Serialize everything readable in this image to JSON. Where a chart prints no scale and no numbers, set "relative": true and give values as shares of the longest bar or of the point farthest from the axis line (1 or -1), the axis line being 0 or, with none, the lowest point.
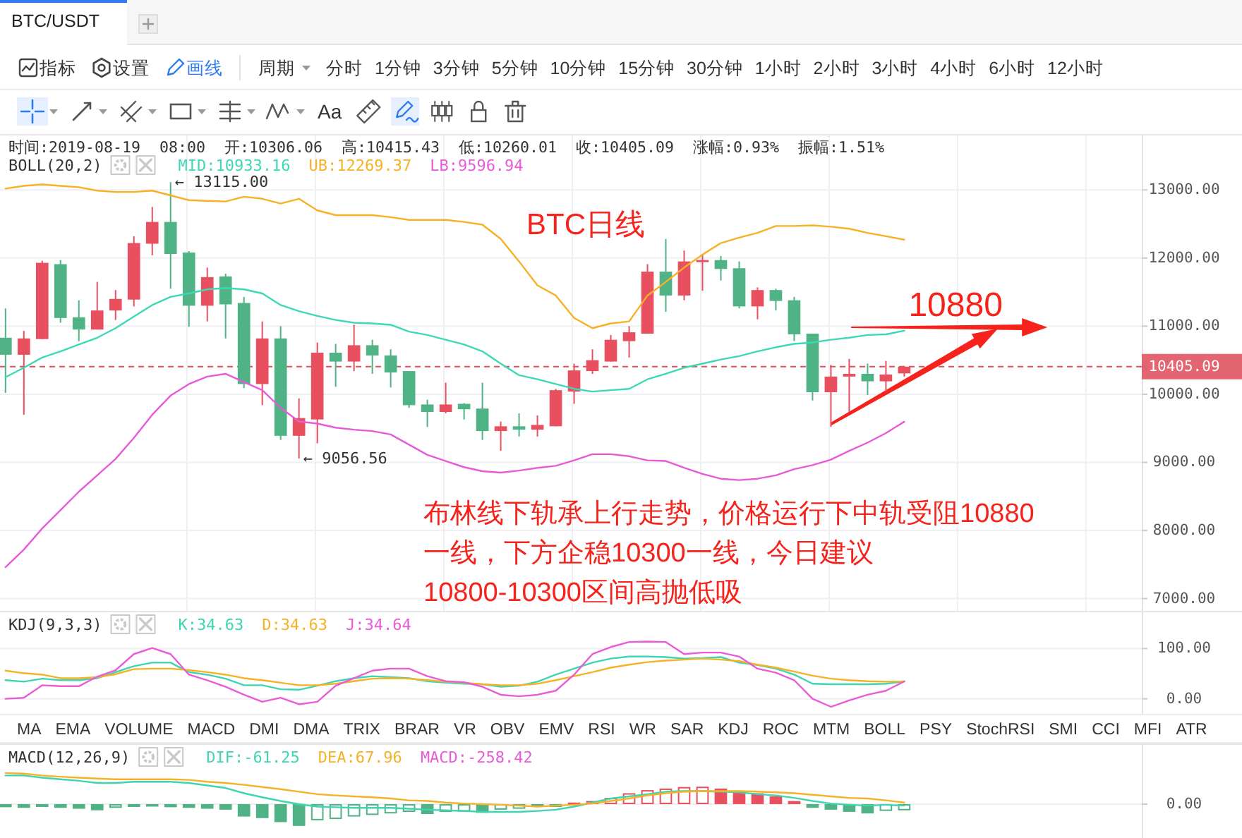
{
  "chart_data": [
    {
      "type": "other",
      "title": "BTC/USDT",
      "annotations": [
        "指标",
        "设置",
        "画线",
        "周期",
        "分时 1分钟 3分钟 5分钟 10分钟 15分钟 30分钟 1小时 2小时 3小时 4小时 6小时 12小时"
      ]
    },
    {
      "type": "other",
      "annotations": [
        "Aa"
      ]
    },
    {
      "type": "candlestick",
      "subtitle": "时间:2019-08-19 08:00 开:10306.06 高:10415.43 低:10260.01 收:10405.09 涨幅:0.93% 振幅:1.51%",
      "legend_title": "BOLL(20,2)",
      "legend": "top left",
      "grid": true,
      "categories": [
        null,
        null,
        null,
        null,
        null,
        null,
        null,
        null,
        null,
        null,
        null,
        null,
        null,
        null,
        null,
        null,
        null,
        null,
        null,
        null,
        null,
        null,
        null,
        null,
        null,
        null,
        null,
        null,
        null,
        null,
        null,
        null,
        null,
        null,
        null,
        null,
        null,
        null,
        null,
        null,
        null,
        null,
        null,
        null,
        null,
        null,
        null,
        null,
        null,
        null
      ],
      "ohlc": [
        [
          10830,
          11260,
          10020,
          10580
        ],
        [
          10580,
          10930,
          9700,
          10820
        ],
        [
          10810,
          11960,
          10810,
          11930
        ],
        [
          11910,
          11970,
          11050,
          11120
        ],
        [
          11130,
          11380,
          10780,
          10950
        ],
        [
          10950,
          11650,
          10950,
          11230
        ],
        [
          11230,
          11530,
          11090,
          11400
        ],
        [
          11390,
          12320,
          11290,
          12220
        ],
        [
          12210,
          12750,
          12040,
          12530
        ],
        [
          12530,
          13115,
          11550,
          12060
        ],
        [
          12080,
          12100,
          10990,
          11300
        ],
        [
          11300,
          11860,
          11070,
          11720
        ],
        [
          11730,
          11770,
          10820,
          11320
        ],
        [
          11340,
          11430,
          10090,
          10150
        ],
        [
          10150,
          11070,
          9840,
          10820
        ],
        [
          10820,
          11000,
          9330,
          9390
        ],
        [
          9390,
          9940,
          9056.56,
          9650
        ],
        [
          9630,
          10760,
          9280,
          10610
        ],
        [
          10610,
          10740,
          10110,
          10480
        ],
        [
          10480,
          11020,
          10340,
          10720
        ],
        [
          10720,
          10800,
          10300,
          10570
        ],
        [
          10570,
          10660,
          10100,
          10320
        ],
        [
          10340,
          10340,
          9800,
          9840
        ],
        [
          9850,
          9920,
          9520,
          9740
        ],
        [
          9740,
          10170,
          9720,
          9850
        ],
        [
          9860,
          9870,
          9630,
          9780
        ],
        [
          9790,
          10170,
          9330,
          9460
        ],
        [
          9460,
          9600,
          9170,
          9530
        ],
        [
          9530,
          9720,
          9380,
          9480
        ],
        [
          9480,
          9690,
          9380,
          9550
        ],
        [
          9530,
          10080,
          9530,
          10060
        ],
        [
          10040,
          10450,
          9860,
          10350
        ],
        [
          10340,
          10660,
          10300,
          10500
        ],
        [
          10480,
          10870,
          10480,
          10800
        ],
        [
          10780,
          11000,
          10540,
          10910
        ],
        [
          10890,
          11910,
          10890,
          11800
        ],
        [
          11800,
          12280,
          11210,
          11450
        ],
        [
          11450,
          12110,
          11380,
          11950
        ],
        [
          11940,
          12060,
          11520,
          11970
        ],
        [
          11970,
          12030,
          11670,
          11840
        ],
        [
          11850,
          11950,
          11260,
          11290
        ],
        [
          11290,
          11570,
          11100,
          11530
        ],
        [
          11530,
          11550,
          11230,
          11370
        ],
        [
          11380,
          11430,
          10780,
          10880
        ],
        [
          10890,
          10890,
          9910,
          10030
        ],
        [
          10030,
          10430,
          9520,
          10260
        ],
        [
          10260,
          10520,
          9740,
          10300
        ],
        [
          10300,
          10450,
          9990,
          10190
        ],
        [
          10190,
          10490,
          10040,
          10290
        ],
        [
          10306.06,
          10415.43,
          10260.01,
          10405.09
        ]
      ],
      "colors": [
        "#4fb386",
        "#e9505f",
        "#e9505f",
        "#4fb386",
        "#4fb386",
        "#e9505f",
        "#e9505f",
        "#e9505f",
        "#e9505f",
        "#4fb386",
        "#4fb386",
        "#e9505f",
        "#4fb386",
        "#4fb386",
        "#e9505f",
        "#4fb386",
        "#e9505f",
        "#e9505f",
        "#4fb386",
        "#e9505f",
        "#4fb386",
        "#4fb386",
        "#4fb386",
        "#4fb386",
        "#e9505f",
        "#4fb386",
        "#4fb386",
        "#e9505f",
        "#4fb386",
        "#e9505f",
        "#e9505f",
        "#e9505f",
        "#e9505f",
        "#e9505f",
        "#e9505f",
        "#e9505f",
        "#4fb386",
        "#e9505f",
        "#e9505f",
        "#4fb386",
        "#4fb386",
        "#e9505f",
        "#4fb386",
        "#4fb386",
        "#4fb386",
        "#e9505f",
        "#e9505f",
        "#4fb386",
        "#e9505f",
        "#e9505f"
      ],
      "series": [
        {
          "name": "MID:10933.16",
          "type": "line",
          "color": "#3dd8b6",
          "values": [
            10250,
            10390,
            10540,
            10630,
            10730,
            10830,
            10970,
            11140,
            11310,
            11430,
            11480,
            11540,
            11560,
            11540,
            11480,
            11310,
            11220,
            11150,
            11090,
            11050,
            11040,
            11020,
            10920,
            10870,
            10800,
            10730,
            10630,
            10450,
            10280,
            10220,
            10150,
            10080,
            10040,
            10060,
            10080,
            10220,
            10300,
            10390,
            10450,
            10510,
            10560,
            10630,
            10690,
            10740,
            10760,
            10800,
            10830,
            10870,
            10880,
            10933.16
          ]
        },
        {
          "name": "UB:12269.37",
          "type": "line",
          "color": "#f8b124",
          "values": [
            13020,
            13060,
            13080,
            13060,
            13040,
            12990,
            12970,
            12970,
            12990,
            12920,
            12850,
            12840,
            12830,
            12900,
            12870,
            12800,
            12870,
            12700,
            12630,
            12630,
            12630,
            12600,
            12560,
            12560,
            12560,
            12530,
            12490,
            12280,
            11950,
            11600,
            11450,
            11120,
            10970,
            11040,
            11070,
            11450,
            11650,
            11860,
            12050,
            12220,
            12300,
            12370,
            12470,
            12470,
            12480,
            12460,
            12430,
            12370,
            12320,
            12269.37
          ]
        },
        {
          "name": "LB:9596.94",
          "type": "line",
          "color": "#e75bd7",
          "values": [
            7460,
            7720,
            8030,
            8300,
            8570,
            8810,
            9050,
            9360,
            9700,
            9980,
            10150,
            10260,
            10300,
            10180,
            10060,
            9800,
            9600,
            9570,
            9510,
            9480,
            9460,
            9410,
            9260,
            9110,
            9020,
            8930,
            8870,
            8850,
            8880,
            8920,
            8950,
            9030,
            9120,
            9120,
            9090,
            9030,
            9020,
            8920,
            8830,
            8760,
            8740,
            8760,
            8810,
            8900,
            8960,
            9040,
            9170,
            9290,
            9430,
            9596.94
          ]
        }
      ],
      "ylim": [
        6820,
        13800
      ],
      "yticks": [
        {
          "value": 7000,
          "label": "7000.00"
        },
        {
          "value": 8000,
          "label": "8000.00"
        },
        {
          "value": 9000,
          "label": "9000.00"
        },
        {
          "value": 10000,
          "label": "10000.00"
        },
        {
          "value": 10405.09,
          "label": "10405.09"
        },
        {
          "value": 11000,
          "label": "11000.00"
        },
        {
          "value": 12000,
          "label": "12000.00"
        },
        {
          "value": 13000,
          "label": "13000.00"
        }
      ],
      "ref_lines": [
        {
          "axis": "y",
          "value": 10405.09,
          "color": "#e0505e",
          "line_style": "dashed"
        }
      ],
      "annotations": [
        "BTC日线",
        "10880",
        "布林线下轨承上行走势，价格运行下中轨受阻10880\n一线，下方企稳10300一线，今日建议\n10800-10300区间高抛低吸",
        "← 13115.00",
        "← 9056.56"
      ]
    },
    {
      "type": "line",
      "legend_title": "KDJ(9,3,3)",
      "legend": "top left",
      "grid": "y",
      "categories": [
        null,
        null,
        null,
        null,
        null,
        null,
        null,
        null,
        null,
        null,
        null,
        null,
        null,
        null,
        null,
        null,
        null,
        null,
        null,
        null,
        null,
        null,
        null,
        null,
        null,
        null,
        null,
        null,
        null,
        null,
        null,
        null,
        null,
        null,
        null,
        null,
        null,
        null,
        null,
        null,
        null,
        null,
        null,
        null,
        null,
        null,
        null,
        null,
        null,
        null
      ],
      "series": [
        {
          "name": "K:34.63",
          "color": "#3fd4b2",
          "values": [
            37,
            34,
            40,
            37,
            37,
            41,
            53,
            65,
            72,
            72,
            53,
            48,
            40,
            27,
            27,
            19,
            18,
            26,
            35,
            41,
            45,
            43,
            41,
            35,
            32,
            30,
            29,
            24,
            26,
            34,
            48,
            60,
            72,
            80,
            84,
            84,
            83,
            80,
            81,
            83,
            72,
            67,
            60,
            48,
            30,
            29,
            29,
            29,
            30,
            34.63
          ]
        },
        {
          "name": "D:34.63",
          "color": "#f6b226",
          "values": [
            56,
            51,
            48,
            41,
            41,
            43,
            49,
            59,
            60,
            60,
            57,
            53,
            48,
            41,
            37,
            32,
            27,
            27,
            30,
            35,
            40,
            41,
            40,
            37,
            34,
            32,
            29,
            27,
            27,
            30,
            37,
            45,
            53,
            62,
            68,
            73,
            76,
            78,
            80,
            78,
            75,
            68,
            62,
            54,
            46,
            40,
            37,
            35,
            34,
            34.63
          ]
        },
        {
          "name": "J:34.64",
          "color": "#ea5bd8",
          "values": [
            0,
            2,
            27,
            25,
            25,
            44,
            57,
            89,
            101,
            89,
            48,
            37,
            24,
            8,
            -6,
            2,
            -11,
            -6,
            26,
            41,
            56,
            60,
            60,
            45,
            35,
            33,
            24,
            8,
            5,
            8,
            16,
            48,
            89,
            103,
            113,
            114,
            113,
            89,
            92,
            92,
            84,
            60,
            52,
            37,
            0,
            -16,
            -3,
            8,
            16,
            34.64
          ]
        }
      ],
      "ylim": [
        -30,
        175
      ],
      "yticks": [
        {
          "value": 0,
          "label": "0.00"
        },
        {
          "value": 100,
          "label": "100.00"
        }
      ]
    },
    {
      "type": "other",
      "annotations": [
        "MA",
        "EMA",
        "VOLUME",
        "MACD",
        "DMI",
        "DMA",
        "TRIX",
        "BRAR",
        "VR",
        "OBV",
        "EMV",
        "RSI",
        "WR",
        "SAR",
        "KDJ",
        "ROC",
        "MTM",
        "BOLL",
        "PSY",
        "StochRSI",
        "SMI",
        "CCI",
        "MFI",
        "ATR"
      ]
    },
    {
      "type": "bar",
      "relative": true,
      "legend_title": "MACD(12,26,9)",
      "legend": "top left",
      "annotations": [
        "0.00"
      ],
      "categories": [
        null,
        null,
        null,
        null,
        null,
        null,
        null,
        null,
        null,
        null,
        null,
        null,
        null,
        null,
        null,
        null,
        null,
        null,
        null,
        null,
        null,
        null,
        null,
        null,
        null,
        null,
        null,
        null,
        null,
        null,
        null,
        null,
        null,
        null,
        null,
        null,
        null,
        null,
        null,
        null,
        null,
        null,
        null,
        null,
        null,
        null,
        null,
        null,
        null,
        null
      ],
      "series": [
        {
          "name": "DIF:-61.25",
          "type": "line",
          "color": "#3fd4b2",
          "values": [
            0.92,
            0.92,
            0.85,
            0.8,
            0.75,
            0.68,
            0.68,
            0.72,
            0.72,
            0.72,
            0.68,
            0.6,
            0.52,
            0.35,
            0.22,
            0.1,
            0,
            -0.08,
            -0.1,
            -0.12,
            -0.12,
            -0.12,
            -0.15,
            -0.18,
            -0.2,
            -0.22,
            -0.25,
            -0.25,
            -0.25,
            -0.22,
            -0.18,
            -0.08,
            0.05,
            0.18,
            0.25,
            0.32,
            0.4,
            0.42,
            0.42,
            0.4,
            0.38,
            0.32,
            0.28,
            0.2,
            0.1,
            0.02,
            -0.02,
            -0.05,
            -0.02,
            -0.05
          ]
        },
        {
          "name": "DEA:67.96",
          "type": "line",
          "color": "#f6b226",
          "values": [
            1,
            0.98,
            0.92,
            0.88,
            0.85,
            0.82,
            0.8,
            0.8,
            0.8,
            0.8,
            0.78,
            0.72,
            0.68,
            0.62,
            0.55,
            0.48,
            0.4,
            0.32,
            0.28,
            0.25,
            0.22,
            0.18,
            0.12,
            0.1,
            0.05,
            0.02,
            0,
            -0.02,
            -0.05,
            -0.08,
            -0.05,
            -0.02,
            0.02,
            0.1,
            0.18,
            0.28,
            0.35,
            0.4,
            0.42,
            0.42,
            0.42,
            0.4,
            0.38,
            0.35,
            0.3,
            0.25,
            0.2,
            0.18,
            0.12,
            0.05
          ]
        },
        {
          "name": "MACD:-258.42",
          "type": "bar",
          "color": "#e75bd7",
          "colors": [
            "#4fb386",
            "#4fb386",
            "#4fb386",
            "#4fb386",
            "#4fb386",
            "#4fb386",
            "#4fb386",
            "#4fb386",
            "#4fb386",
            "#4fb386",
            "#4fb386",
            "#4fb386",
            "#4fb386",
            "#4fb386",
            "#4fb386",
            "#4fb386",
            "#4fb386",
            "#4fb386",
            "#4fb386",
            "#4fb386",
            "#4fb386",
            "#4fb386",
            "#4fb386",
            "#4fb386",
            "#4fb386",
            "#4fb386",
            "#4fb386",
            "#4fb386",
            "#4fb386",
            "#4fb386",
            "#4fb386",
            "#e9505f",
            "#e9505f",
            "#e9505f",
            "#e9505f",
            "#e9505f",
            "#e9505f",
            "#e9505f",
            "#e9505f",
            "#e9505f",
            "#e9505f",
            "#e9505f",
            "#e9505f",
            "#e9505f",
            "#4fb386",
            "#4fb386",
            "#4fb386",
            "#4fb386",
            "#4fb386",
            "#4fb386"
          ],
          "values": [
            -0.1,
            -0.12,
            -0.08,
            -0.12,
            -0.15,
            -0.2,
            -0.12,
            -0.05,
            -0.08,
            -0.1,
            -0.12,
            -0.15,
            -0.18,
            -0.4,
            -0.45,
            -0.58,
            -0.7,
            -0.52,
            -0.48,
            -0.4,
            -0.35,
            -0.3,
            -0.25,
            -0.32,
            -0.25,
            -0.24,
            -0.28,
            -0.18,
            -0.15,
            -0.08,
            -0.03,
            0.05,
            0.1,
            0.2,
            0.35,
            0.45,
            0.5,
            0.55,
            0.56,
            0.5,
            0.42,
            0.35,
            0.25,
            0.1,
            -0.12,
            -0.18,
            -0.25,
            -0.3,
            -0.22,
            -0.2
          ]
        }
      ],
      "ref_lines": [
        {
          "axis": "y",
          "value": 0,
          "color": "#eeeeee"
        }
      ]
    }
  ]
}
